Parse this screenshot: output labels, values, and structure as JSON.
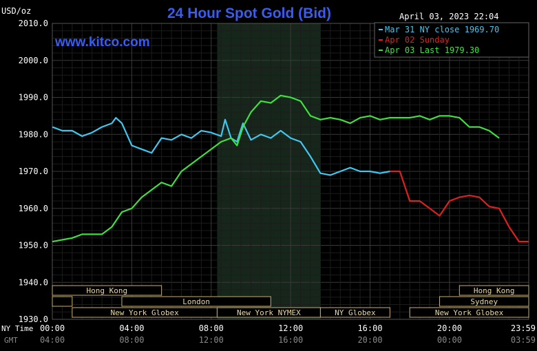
{
  "header": {
    "unit": "USD/oz",
    "title": "24 Hour Spot Gold (Bid)",
    "date": "April 03, 2023 22:04",
    "site": "www.kitco.com"
  },
  "legend": [
    {
      "text": "Mar 31 NY close 1969.70",
      "color": "#40c8f0"
    },
    {
      "text": "Apr 02 Sunday",
      "color": "#e02020"
    },
    {
      "text": "Apr 03 Last 1979.30",
      "color": "#40e040"
    }
  ],
  "axis": {
    "y_ticks": [
      "2010.0",
      "2000.0",
      "1990.0",
      "1980.0",
      "1970.0",
      "1960.0",
      "1950.0",
      "1940.0",
      "1930.0"
    ],
    "row_ny_label": "NY Time",
    "row_gmt_label": "GMT",
    "ny_ticks": [
      "00:00",
      "04:00",
      "08:00",
      "12:00",
      "16:00",
      "20:00",
      "23:59"
    ],
    "gmt_ticks": [
      "04:00",
      "08:00",
      "12:00",
      "16:00",
      "20:00",
      "00:00",
      "03:59"
    ]
  },
  "sessions": [
    {
      "label": "Hong Kong",
      "row": 0,
      "start": 0,
      "end": 5.5
    },
    {
      "label": "Hong Kong",
      "row": 0,
      "start": 20.5,
      "end": 23.99
    },
    {
      "label": "",
      "row": 1,
      "start": 0,
      "end": 1
    },
    {
      "label": "London",
      "row": 1,
      "start": 3.5,
      "end": 11
    },
    {
      "label": "Sydney",
      "row": 1,
      "start": 19.5,
      "end": 23.99
    },
    {
      "label": "New York Globex",
      "row": 2,
      "start": 1,
      "end": 8.3
    },
    {
      "label": "New York NYMEX",
      "row": 2,
      "start": 8.3,
      "end": 13.5
    },
    {
      "label": "NY Globex",
      "row": 2,
      "start": 13.5,
      "end": 17
    },
    {
      "label": "New York Globex",
      "row": 2,
      "start": 18,
      "end": 23.99
    }
  ],
  "chart_data": {
    "type": "line",
    "ylim": [
      1930,
      2010
    ],
    "xlim": [
      0,
      23.99
    ],
    "grid": true,
    "highlight_x": [
      8.3,
      13.5
    ],
    "series": [
      {
        "name": "Mar 31 NY close 1969.70",
        "color": "#40c8f0",
        "x": [
          0,
          0.5,
          1,
          1.5,
          2,
          2.5,
          3,
          3.2,
          3.5,
          4,
          4.5,
          5,
          5.5,
          6,
          6.5,
          7,
          7.5,
          8,
          8.5,
          8.7,
          9,
          9.3,
          9.6,
          10,
          10.5,
          11,
          11.5,
          12,
          12.5,
          13,
          13.5,
          14,
          14.5,
          15,
          15.5,
          16,
          16.5,
          17
        ],
        "y": [
          1982,
          1981,
          1981,
          1979.5,
          1980.5,
          1982,
          1983,
          1984.5,
          1983,
          1977,
          1976,
          1975,
          1979,
          1978.5,
          1980,
          1979,
          1981,
          1980.5,
          1979.5,
          1984,
          1979,
          1978,
          1983,
          1978.5,
          1980,
          1979,
          1981,
          1979,
          1978,
          1974,
          1969.5,
          1969,
          1970,
          1971,
          1970,
          1970,
          1969.5,
          1970
        ]
      },
      {
        "name": "Apr 02 Sunday",
        "color": "#e02020",
        "x": [
          17,
          17.5,
          18,
          18.5,
          19,
          19.5,
          20,
          20.5,
          21,
          21.5,
          22,
          22.5,
          23,
          23.5,
          23.99
        ],
        "y": [
          1970,
          1970,
          1962,
          1962,
          1960,
          1958,
          1962,
          1963,
          1963.5,
          1963,
          1960.5,
          1960,
          1955,
          1951,
          1951
        ]
      },
      {
        "name": "Apr 03 Last 1979.30",
        "color": "#40e040",
        "x": [
          0,
          0.5,
          1,
          1.5,
          2,
          2.5,
          3,
          3.5,
          4,
          4.5,
          5,
          5.5,
          6,
          6.5,
          7,
          7.5,
          8,
          8.5,
          9,
          9.3,
          9.6,
          10,
          10.5,
          11,
          11.5,
          12,
          12.5,
          13,
          13.5,
          14,
          14.5,
          15,
          15.5,
          16,
          16.5,
          17,
          17.5,
          18,
          18.5,
          19,
          19.5,
          20,
          20.5,
          21,
          21.5,
          22,
          22.5
        ],
        "y": [
          1951,
          1951.5,
          1952,
          1953,
          1953,
          1953,
          1955,
          1959,
          1960,
          1963,
          1965,
          1967,
          1966,
          1970,
          1972,
          1974,
          1976,
          1978,
          1979,
          1977,
          1982,
          1986,
          1989,
          1988.5,
          1990.5,
          1990,
          1989,
          1985,
          1984,
          1984.5,
          1984,
          1983,
          1984.5,
          1985,
          1984,
          1984.5,
          1984.5,
          1984.5,
          1985,
          1984,
          1985,
          1985,
          1984.5,
          1982,
          1982,
          1981,
          1979
        ]
      }
    ]
  }
}
